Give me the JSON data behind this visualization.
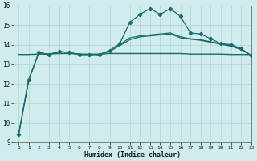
{
  "xlabel": "Humidex (Indice chaleur)",
  "bg_color": "#d0ecec",
  "grid_color": "#b8d8d8",
  "line_color": "#1a6b6b",
  "xlim": [
    -0.5,
    23
  ],
  "ylim": [
    9,
    16
  ],
  "yticks": [
    9,
    10,
    11,
    12,
    13,
    14,
    15,
    16
  ],
  "xticks": [
    0,
    1,
    2,
    3,
    4,
    5,
    6,
    7,
    8,
    9,
    10,
    11,
    12,
    13,
    14,
    15,
    16,
    17,
    18,
    19,
    20,
    21,
    22,
    23
  ],
  "line1_x": [
    0,
    1,
    2,
    3,
    4,
    5,
    6,
    7,
    8,
    9,
    10,
    11,
    12,
    13,
    14,
    15,
    16,
    17,
    18,
    19,
    20,
    21,
    22,
    23
  ],
  "line1_y": [
    9.4,
    12.2,
    13.6,
    13.5,
    13.65,
    13.6,
    13.5,
    13.5,
    13.5,
    13.7,
    14.05,
    15.15,
    15.55,
    15.85,
    15.55,
    15.85,
    15.45,
    14.6,
    14.55,
    14.3,
    14.05,
    14.0,
    13.8,
    13.45
  ],
  "line2_x": [
    0,
    1,
    2,
    3,
    4,
    5,
    6,
    7,
    8,
    9,
    10,
    11,
    12,
    13,
    14,
    15,
    16,
    17,
    18,
    19,
    20,
    21,
    22,
    23
  ],
  "line2_y": [
    9.4,
    12.2,
    13.6,
    13.5,
    13.65,
    13.6,
    13.5,
    13.5,
    13.5,
    13.7,
    14.0,
    14.35,
    14.45,
    14.5,
    14.55,
    14.6,
    14.4,
    14.3,
    14.25,
    14.15,
    14.05,
    13.95,
    13.78,
    13.45
  ],
  "line3_x": [
    0,
    1,
    2,
    3,
    4,
    5,
    6,
    7,
    8,
    9,
    10,
    11,
    12,
    13,
    14,
    15,
    16,
    17,
    18,
    19,
    20,
    21,
    22,
    23
  ],
  "line3_y": [
    13.5,
    13.5,
    13.52,
    13.52,
    13.55,
    13.55,
    13.52,
    13.52,
    13.52,
    13.55,
    13.55,
    13.55,
    13.55,
    13.55,
    13.55,
    13.55,
    13.55,
    13.52,
    13.52,
    13.52,
    13.52,
    13.5,
    13.5,
    13.5
  ],
  "line4_x": [
    0,
    1,
    2,
    3,
    4,
    5,
    6,
    7,
    8,
    9,
    10,
    11,
    12,
    13,
    14,
    15,
    16,
    17,
    18,
    19,
    20,
    21,
    22,
    23
  ],
  "line4_y": [
    9.4,
    12.2,
    13.6,
    13.5,
    13.65,
    13.6,
    13.5,
    13.5,
    13.5,
    13.65,
    13.95,
    14.25,
    14.4,
    14.45,
    14.5,
    14.55,
    14.35,
    14.28,
    14.22,
    14.12,
    14.02,
    13.92,
    13.75,
    13.45
  ]
}
